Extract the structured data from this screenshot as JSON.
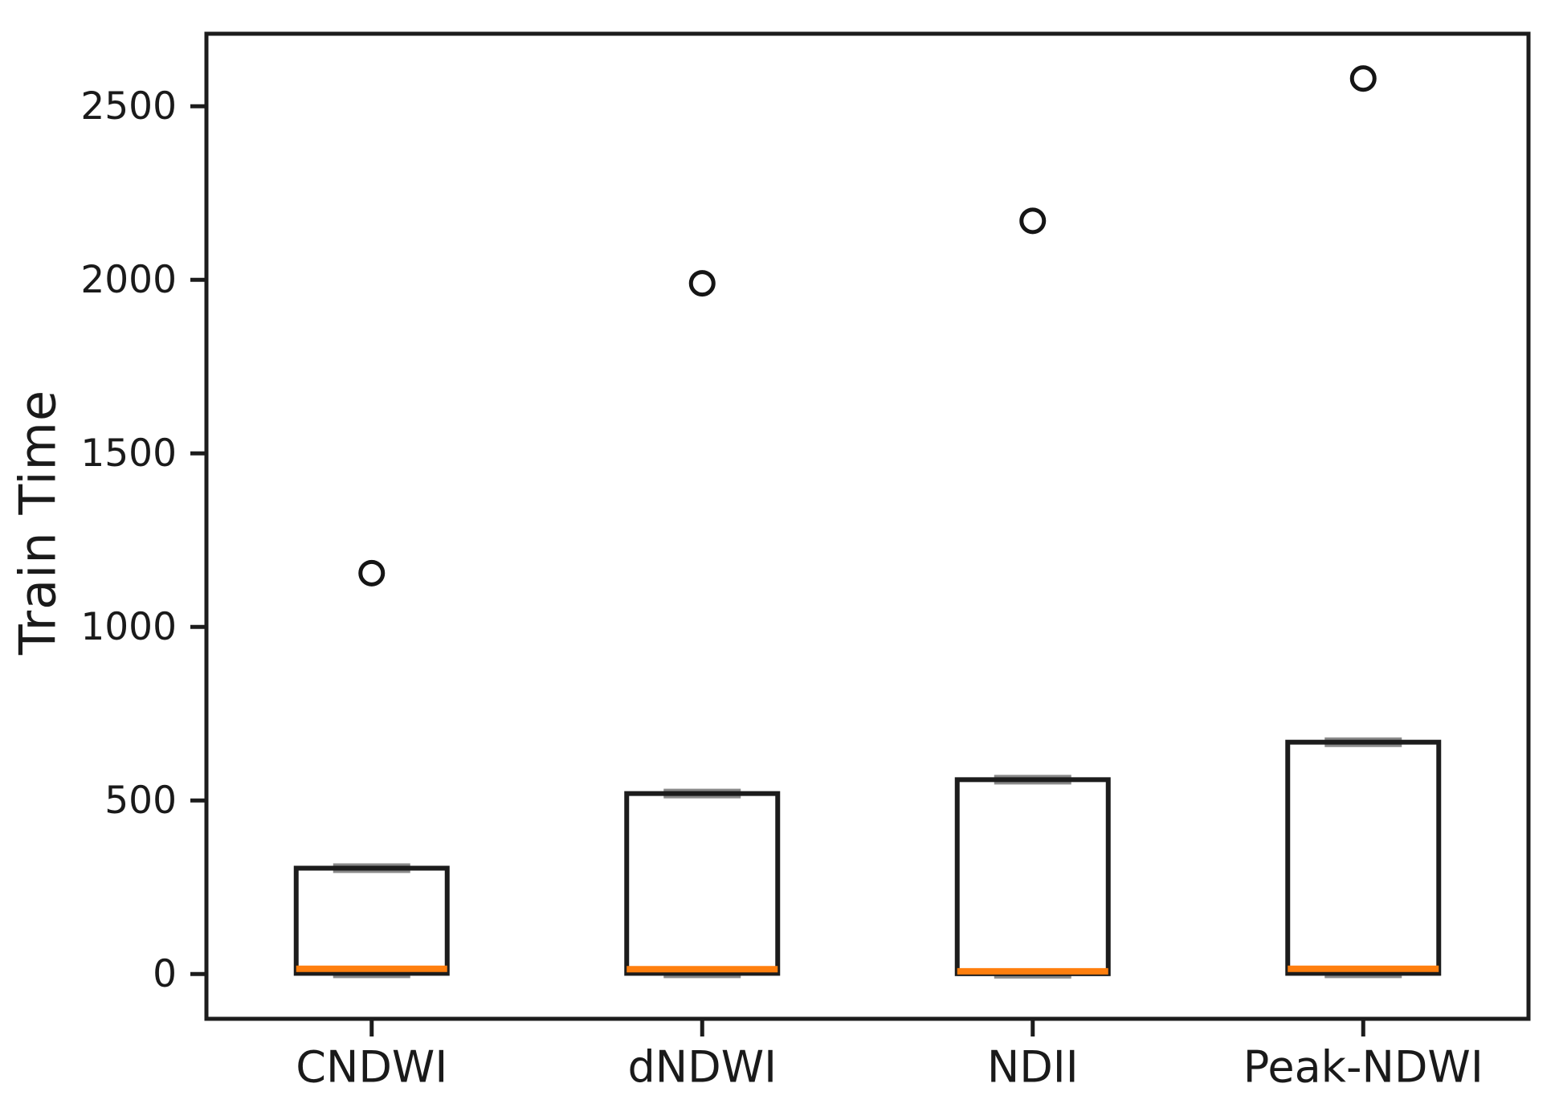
{
  "chart_data": {
    "type": "boxplot",
    "title": "",
    "xlabel": "",
    "ylabel": "Train Time",
    "categories": [
      "CNDWI",
      "dNDWI",
      "NDII",
      "Peak-NDWI"
    ],
    "yticks": [
      0,
      500,
      1000,
      1500,
      2000,
      2500
    ],
    "ylim": [
      -129,
      2709
    ],
    "grid": false,
    "legend": null,
    "series": [
      {
        "category": "CNDWI",
        "q1": 2,
        "median": 15,
        "q3": 305,
        "whisker_low": 2,
        "whisker_high": 305,
        "outliers": [
          1155
        ]
      },
      {
        "category": "dNDWI",
        "q1": 2,
        "median": 14,
        "q3": 520,
        "whisker_low": 2,
        "whisker_high": 520,
        "outliers": [
          1990
        ]
      },
      {
        "category": "NDII",
        "q1": 1,
        "median": 8,
        "q3": 560,
        "whisker_low": 1,
        "whisker_high": 560,
        "outliers": [
          2170
        ]
      },
      {
        "category": "Peak-NDWI",
        "q1": 2,
        "median": 15,
        "q3": 668,
        "whisker_low": 2,
        "whisker_high": 668,
        "outliers": [
          2580
        ]
      }
    ],
    "colors": {
      "box_edge": "#1c1c1c",
      "median": "#ff7f0e",
      "cap": "#8a8a8a",
      "outlier_stroke": "#151515",
      "outlier_fill": "#ffffff",
      "axis": "#1c1c1c",
      "text": "#1a1a1a",
      "background": "#ffffff"
    }
  }
}
